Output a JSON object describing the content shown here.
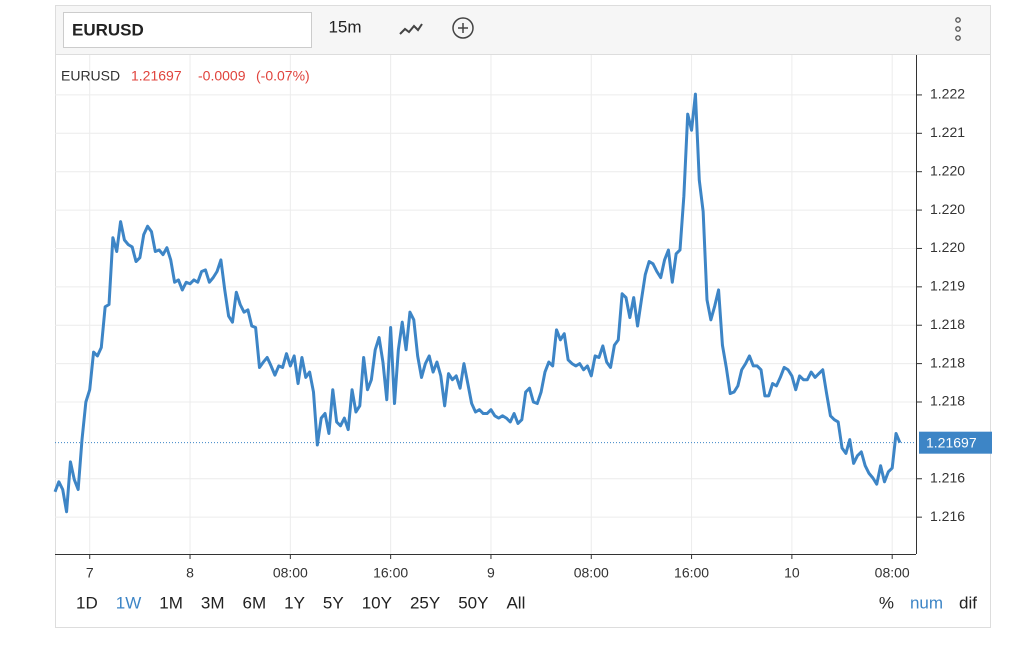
{
  "header": {
    "symbol": "EURUSD",
    "interval": "15m"
  },
  "chart_data": {
    "type": "line",
    "legend": {
      "symbol": "EURUSD",
      "last": 1.21697,
      "change": -0.0009,
      "change_pct": "(-0.07%)"
    },
    "series": [
      {
        "name": "EURUSD",
        "color": "#3d85c6",
        "values": [
          1.21633,
          1.21646,
          1.21636,
          1.21607,
          1.21672,
          1.21649,
          1.21636,
          1.21701,
          1.2175,
          1.21766,
          1.21815,
          1.2181,
          1.21821,
          1.21874,
          1.21877,
          1.21964,
          1.21946,
          1.21985,
          1.21961,
          1.21955,
          1.21952,
          1.21933,
          1.21938,
          1.21968,
          1.21979,
          1.21972,
          1.21946,
          1.21948,
          1.21942,
          1.21951,
          1.21935,
          1.21906,
          1.21909,
          1.21896,
          1.21906,
          1.21904,
          1.21909,
          1.21906,
          1.2192,
          1.21922,
          1.21906,
          1.21912,
          1.2192,
          1.21935,
          1.21896,
          1.21862,
          1.21854,
          1.21893,
          1.21877,
          1.21867,
          1.2187,
          1.21849,
          1.21847,
          1.21795,
          1.21802,
          1.21808,
          1.21797,
          1.21785,
          1.21797,
          1.21795,
          1.21813,
          1.21797,
          1.2181,
          1.21774,
          1.21808,
          1.21782,
          1.21789,
          1.21763,
          1.21694,
          1.21729,
          1.21735,
          1.21709,
          1.21766,
          1.21724,
          1.21719,
          1.21729,
          1.21714,
          1.21766,
          1.21737,
          1.21745,
          1.21808,
          1.21766,
          1.21779,
          1.21818,
          1.21834,
          1.21802,
          1.21753,
          1.21847,
          1.21748,
          1.21818,
          1.21854,
          1.21818,
          1.21867,
          1.21857,
          1.2181,
          1.21782,
          1.218,
          1.2181,
          1.21789,
          1.21802,
          1.21784,
          1.21745,
          1.21787,
          1.21779,
          1.21784,
          1.21768,
          1.218,
          1.21774,
          1.21748,
          1.21737,
          1.2174,
          1.21735,
          1.21735,
          1.2174,
          1.21732,
          1.21729,
          1.21732,
          1.21729,
          1.21724,
          1.21735,
          1.21722,
          1.21727,
          1.21763,
          1.21768,
          1.2175,
          1.21748,
          1.21763,
          1.21789,
          1.21802,
          1.21797,
          1.21844,
          1.21831,
          1.21839,
          1.21805,
          1.218,
          1.21797,
          1.218,
          1.21792,
          1.21797,
          1.21784,
          1.2181,
          1.21808,
          1.21823,
          1.21802,
          1.21795,
          1.21824,
          1.21831,
          1.21891,
          1.21886,
          1.2186,
          1.21886,
          1.21849,
          1.21883,
          1.21916,
          1.21933,
          1.2193,
          1.2192,
          1.21912,
          1.21935,
          1.21948,
          1.21906,
          1.21943,
          1.21948,
          1.22018,
          1.22125,
          1.22104,
          1.22151,
          1.22039,
          1.21998,
          1.21883,
          1.21857,
          1.21875,
          1.21896,
          1.21824,
          1.21795,
          1.21761,
          1.21763,
          1.21771,
          1.21792,
          1.218,
          1.2181,
          1.21797,
          1.21797,
          1.21792,
          1.21758,
          1.21758,
          1.21774,
          1.21771,
          1.21782,
          1.21795,
          1.21792,
          1.21784,
          1.21766,
          1.21784,
          1.21779,
          1.21779,
          1.21789,
          1.21782,
          1.21787,
          1.21792,
          1.21761,
          1.21732,
          1.21727,
          1.21724,
          1.2169,
          1.21683,
          1.21701,
          1.2167,
          1.2168,
          1.21685,
          1.21667,
          1.21657,
          1.21651,
          1.21643,
          1.21667,
          1.21646,
          1.21659,
          1.21664,
          1.21709,
          1.21697
        ]
      }
    ],
    "xlim": [
      0,
      223
    ],
    "xticks": [
      {
        "value": 9,
        "label": "7"
      },
      {
        "value": 35,
        "label": "8"
      },
      {
        "value": 61,
        "label": "08:00"
      },
      {
        "value": 87,
        "label": "16:00"
      },
      {
        "value": 113,
        "label": "9"
      },
      {
        "value": 139,
        "label": "08:00"
      },
      {
        "value": 165,
        "label": "16:00"
      },
      {
        "value": 191,
        "label": "10"
      },
      {
        "value": 217,
        "label": "08:00"
      }
    ],
    "ylim": [
      1.21552,
      1.22202
    ],
    "yticks": [
      {
        "value": 1.2215,
        "label": "1.222"
      },
      {
        "value": 1.221,
        "label": "1.221"
      },
      {
        "value": 1.2205,
        "label": "1.220"
      },
      {
        "value": 1.22,
        "label": "1.220"
      },
      {
        "value": 1.2195,
        "label": "1.220"
      },
      {
        "value": 1.219,
        "label": "1.219"
      },
      {
        "value": 1.2185,
        "label": "1.218"
      },
      {
        "value": 1.218,
        "label": "1.218"
      },
      {
        "value": 1.2175,
        "label": "1.218"
      },
      {
        "value": 1.2165,
        "label": "1.216"
      },
      {
        "value": 1.216,
        "label": "1.216"
      }
    ],
    "grid": true
  },
  "footer": {
    "ranges": [
      "1D",
      "1W",
      "1M",
      "3M",
      "6M",
      "1Y",
      "5Y",
      "10Y",
      "25Y",
      "50Y",
      "All"
    ],
    "active_range": "1W",
    "modes": [
      "%",
      "num",
      "dif"
    ],
    "active_mode": "num"
  }
}
